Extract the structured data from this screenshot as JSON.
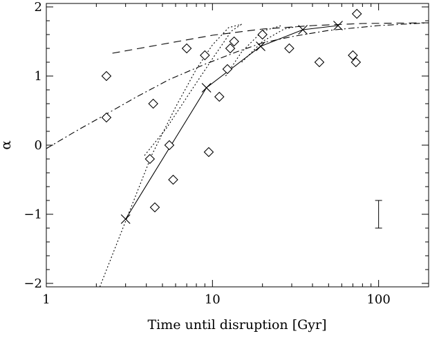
{
  "chart_data": {
    "type": "scatter",
    "title": "",
    "xlabel": "Time until disruption [Gyr]",
    "ylabel": "α",
    "xscale": "log",
    "xlim": [
      1,
      200
    ],
    "ylim": [
      -2.05,
      2.05
    ],
    "grid": false,
    "x_ticks": [
      {
        "value": 1,
        "label": "1"
      },
      {
        "value": 10,
        "label": "10"
      },
      {
        "value": 100,
        "label": "100"
      }
    ],
    "y_ticks": [
      {
        "value": -2,
        "label": "−2"
      },
      {
        "value": -1,
        "label": "−1"
      },
      {
        "value": 0,
        "label": "0"
      },
      {
        "value": 1,
        "label": "1"
      },
      {
        "value": 2,
        "label": "2"
      }
    ],
    "series": [
      {
        "marker": "diamond",
        "line": "none",
        "points": [
          {
            "x": 2.3,
            "y": 1.0
          },
          {
            "x": 2.3,
            "y": 0.4
          },
          {
            "x": 4.2,
            "y": -0.2
          },
          {
            "x": 4.4,
            "y": 0.6
          },
          {
            "x": 4.5,
            "y": -0.9
          },
          {
            "x": 5.5,
            "y": 0.0
          },
          {
            "x": 5.8,
            "y": -0.5
          },
          {
            "x": 7.0,
            "y": 1.4
          },
          {
            "x": 9.0,
            "y": 1.3
          },
          {
            "x": 9.5,
            "y": -0.1
          },
          {
            "x": 11.0,
            "y": 0.7
          },
          {
            "x": 12.3,
            "y": 1.1
          },
          {
            "x": 12.8,
            "y": 1.4
          },
          {
            "x": 13.5,
            "y": 1.5
          },
          {
            "x": 20.0,
            "y": 1.6
          },
          {
            "x": 29.0,
            "y": 1.4
          },
          {
            "x": 44.0,
            "y": 1.2
          },
          {
            "x": 70.0,
            "y": 1.3
          },
          {
            "x": 73.0,
            "y": 1.2
          },
          {
            "x": 74.0,
            "y": 1.9
          }
        ]
      },
      {
        "marker": "cross",
        "line": "solid",
        "points": [
          {
            "x": 3.0,
            "y": -1.07
          },
          {
            "x": 9.2,
            "y": 0.83
          },
          {
            "x": 19.5,
            "y": 1.43
          },
          {
            "x": 35.0,
            "y": 1.67
          },
          {
            "x": 57.0,
            "y": 1.73
          }
        ]
      },
      {
        "marker": "none",
        "line": "dashed",
        "points": [
          {
            "x": 2.5,
            "y": 1.33
          },
          {
            "x": 5.0,
            "y": 1.46
          },
          {
            "x": 10.0,
            "y": 1.59
          },
          {
            "x": 20.0,
            "y": 1.68
          },
          {
            "x": 40.0,
            "y": 1.73
          },
          {
            "x": 80.0,
            "y": 1.76
          },
          {
            "x": 200.0,
            "y": 1.77
          }
        ]
      },
      {
        "marker": "none",
        "line": "dashdot",
        "points": [
          {
            "x": 1.0,
            "y": -0.05
          },
          {
            "x": 1.5,
            "y": 0.2
          },
          {
            "x": 2.3,
            "y": 0.45
          },
          {
            "x": 3.5,
            "y": 0.7
          },
          {
            "x": 5.5,
            "y": 0.95
          },
          {
            "x": 9.0,
            "y": 1.17
          },
          {
            "x": 14.0,
            "y": 1.35
          },
          {
            "x": 20.0,
            "y": 1.48
          },
          {
            "x": 30.0,
            "y": 1.57
          },
          {
            "x": 50.0,
            "y": 1.66
          },
          {
            "x": 100.0,
            "y": 1.73
          },
          {
            "x": 200.0,
            "y": 1.77
          }
        ]
      },
      {
        "marker": "none",
        "line": "dotted",
        "points": [
          {
            "x": 2.1,
            "y": -2.05
          },
          {
            "x": 3.0,
            "y": -1.1
          },
          {
            "x": 4.3,
            "y": -0.15
          },
          {
            "x": 6.0,
            "y": 0.55
          },
          {
            "x": 8.0,
            "y": 1.1
          },
          {
            "x": 10.0,
            "y": 1.45
          },
          {
            "x": 12.5,
            "y": 1.7
          },
          {
            "x": 15.0,
            "y": 1.75
          }
        ]
      },
      {
        "marker": "none",
        "line": "dotted",
        "points": [
          {
            "x": 3.9,
            "y": -0.15
          },
          {
            "x": 5.3,
            "y": 0.25
          },
          {
            "x": 7.5,
            "y": 0.8
          },
          {
            "x": 10.0,
            "y": 1.25
          },
          {
            "x": 13.0,
            "y": 1.65
          },
          {
            "x": 15.0,
            "y": 1.75
          }
        ]
      },
      {
        "marker": "none",
        "line": "dotted",
        "points": [
          {
            "x": 12.0,
            "y": 1.0
          },
          {
            "x": 15.0,
            "y": 1.35
          },
          {
            "x": 20.0,
            "y": 1.65
          },
          {
            "x": 26.0,
            "y": 1.73
          }
        ]
      },
      {
        "marker": "none",
        "line": "dotted",
        "points": [
          {
            "x": 15.0,
            "y": 1.2
          },
          {
            "x": 20.0,
            "y": 1.5
          },
          {
            "x": 27.0,
            "y": 1.68
          },
          {
            "x": 33.0,
            "y": 1.72
          }
        ]
      }
    ],
    "error_bar": {
      "x": 100,
      "y": -1.0,
      "half_height": 0.2,
      "marker": "none"
    }
  }
}
